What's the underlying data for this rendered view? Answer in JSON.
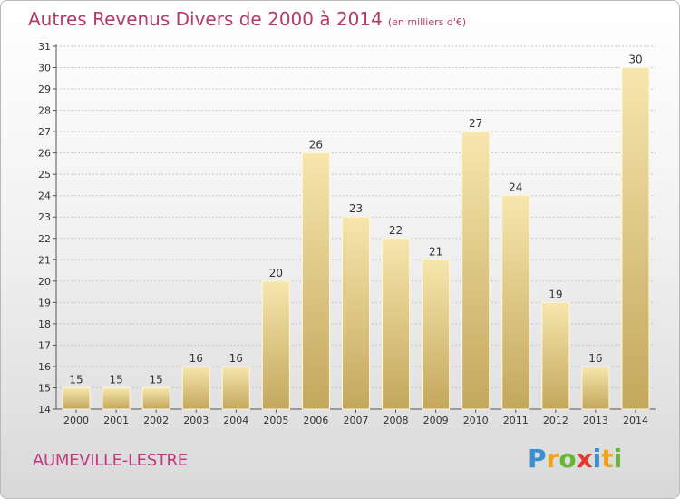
{
  "title": "Autres Revenus Divers de 2000 à 2014",
  "title_unit": "(en milliers d'€)",
  "commune": "AUMEVILLE-LESTRE",
  "logo": "Proxiti",
  "colors": {
    "title": "#b53a6a",
    "bar_light": "#f5e2a6",
    "bar_dark": "#c9ad62",
    "grid": "#c8c8c8"
  },
  "chart_data": {
    "type": "bar",
    "title": "Autres Revenus Divers de 2000 à 2014",
    "subtitle": "(en milliers d'€)",
    "categories": [
      "2000",
      "2001",
      "2002",
      "2003",
      "2004",
      "2005",
      "2006",
      "2007",
      "2008",
      "2009",
      "2010",
      "2011",
      "2012",
      "2013",
      "2014"
    ],
    "values": [
      15,
      15,
      15,
      16,
      16,
      20,
      26,
      23,
      22,
      21,
      27,
      24,
      19,
      16,
      30
    ],
    "ylim": [
      14,
      31
    ],
    "yticks": [
      14,
      15,
      16,
      17,
      18,
      19,
      20,
      21,
      22,
      23,
      24,
      25,
      26,
      27,
      28,
      29,
      30,
      31
    ],
    "grid": true,
    "data_labels": true,
    "xlabel": "",
    "ylabel": ""
  }
}
